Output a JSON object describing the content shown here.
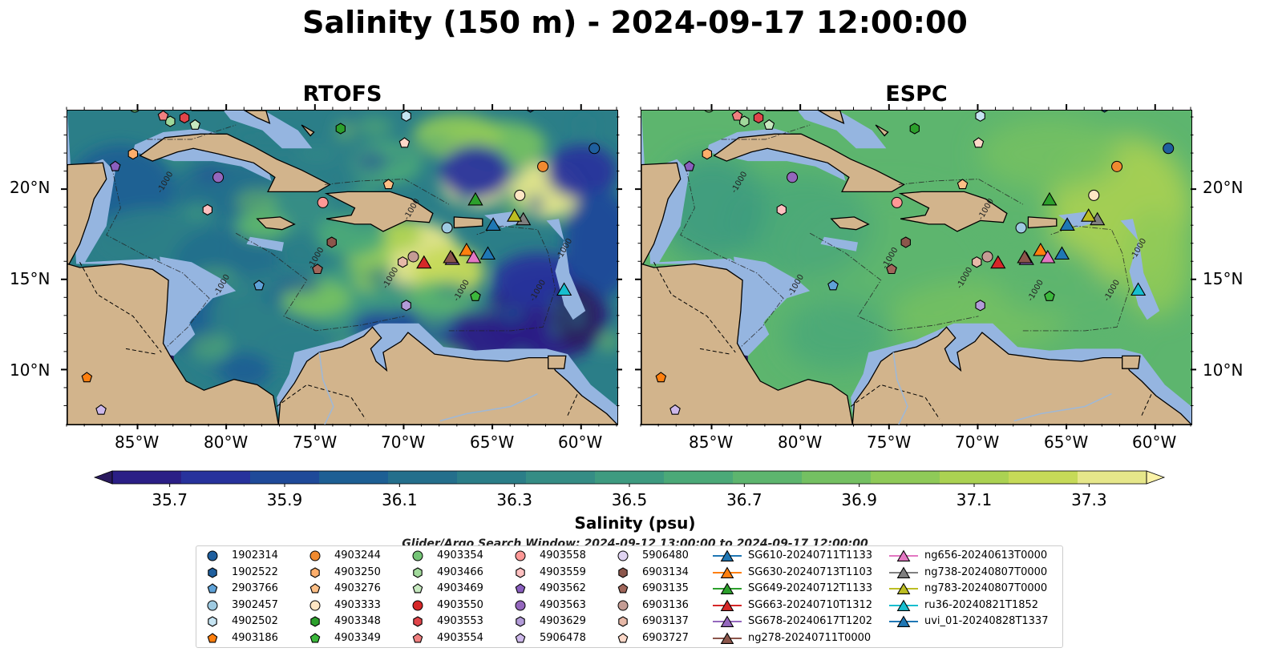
{
  "figure": {
    "title": "Salinity (150 m) - 2024-09-17 12:00:00",
    "search_window_text": "Glider/Argo Search Window: 2024-09-12 13:00:00 to 2024-09-17 12:00:00"
  },
  "colors": {
    "land": "#d2b48c",
    "shelf": "#95b5e0",
    "colormap": [
      "#2a1a5e",
      "#2b1f86",
      "#27329c",
      "#1f4a99",
      "#1d5f94",
      "#246f8c",
      "#2b7e88",
      "#358d85",
      "#3e9b80",
      "#4ba978",
      "#5db56e",
      "#74c062",
      "#8fca58",
      "#abd252",
      "#c6da58",
      "#e6e78a",
      "#fbf3a8"
    ]
  },
  "chart_data": [
    {
      "type": "heatmap",
      "title": "RTOFS",
      "xlabel": "",
      "ylabel": "",
      "x_ticks": [
        "85°W",
        "80°W",
        "75°W",
        "70°W",
        "65°W",
        "60°W"
      ],
      "x_tick_values": [
        -85,
        -80,
        -75,
        -70,
        -65,
        -60
      ],
      "y_ticks": [
        "20°N",
        "15°N",
        "10°N"
      ],
      "y_tick_values": [
        20,
        15,
        10
      ],
      "xlim": [
        -89,
        -58
      ],
      "ylim": [
        7,
        24.4
      ],
      "contour_labels": [
        "-1000"
      ],
      "field_character": "strong eddies, high salinity core near 67-70°W 15-18°N"
    },
    {
      "type": "heatmap",
      "title": "ESPC",
      "xlabel": "",
      "ylabel": "",
      "x_ticks": [
        "85°W",
        "80°W",
        "75°W",
        "70°W",
        "65°W",
        "60°W"
      ],
      "x_tick_values": [
        -85,
        -80,
        -75,
        -70,
        -65,
        -60
      ],
      "y_ticks": [
        "20°N",
        "15°N",
        "10°N"
      ],
      "y_tick_values": [
        20,
        15,
        10
      ],
      "xlim": [
        -89,
        -58
      ],
      "ylim": [
        7,
        24.4
      ],
      "contour_labels": [
        "-1000"
      ],
      "field_character": "smooth field, mostly ~36.8-37.0 psu"
    },
    {
      "type": "colorbar",
      "label": "Salinity (psu)",
      "range": [
        35.6,
        37.4
      ],
      "tick_values": [
        35.7,
        35.9,
        36.1,
        36.3,
        36.5,
        36.7,
        36.9,
        37.1,
        37.3
      ],
      "tick_labels": [
        "35.7",
        "35.9",
        "36.1",
        "36.3",
        "36.5",
        "36.7",
        "36.9",
        "37.1",
        "37.3"
      ],
      "extend": "both"
    }
  ],
  "points": [
    {
      "id": "1902314",
      "lon": -59.3,
      "lat": 22.3,
      "marker": "circle",
      "color": "#1f5f9e"
    },
    {
      "id": "1902522",
      "lon": -62.9,
      "lat": 24.6,
      "marker": "hexagon",
      "color": "#1f5f9e"
    },
    {
      "id": "2903766",
      "lon": -78.2,
      "lat": 14.7,
      "marker": "pentagon",
      "color": "#5fa2d8"
    },
    {
      "id": "3902457",
      "lon": -67.6,
      "lat": 17.9,
      "marker": "circle",
      "color": "#9ecae1"
    },
    {
      "id": "4902502",
      "lon": -69.9,
      "lat": 24.1,
      "marker": "hexagon",
      "color": "#c6e4f2"
    },
    {
      "id": "4903186",
      "lon": -87.9,
      "lat": 9.6,
      "marker": "pentagon",
      "color": "#ff7f0e"
    },
    {
      "id": "4903244",
      "lon": -62.2,
      "lat": 21.3,
      "marker": "circle",
      "color": "#f08a30"
    },
    {
      "id": "4903250",
      "lon": -85.3,
      "lat": 22.0,
      "marker": "hexagon",
      "color": "#fdae6b"
    },
    {
      "id": "4903276",
      "lon": -70.9,
      "lat": 20.3,
      "marker": "pentagon",
      "color": "#fdbf86"
    },
    {
      "id": "4903333",
      "lon": -63.5,
      "lat": 19.7,
      "marker": "circle",
      "color": "#fee6c4"
    },
    {
      "id": "4903348",
      "lon": -73.6,
      "lat": 23.4,
      "marker": "hexagon",
      "color": "#2ca02c"
    },
    {
      "id": "4903349",
      "lon": -66.0,
      "lat": 14.1,
      "marker": "pentagon",
      "color": "#3cb83c"
    },
    {
      "id": "4903354",
      "lon": -85.2,
      "lat": 24.6,
      "marker": "circle",
      "color": "#74c476"
    },
    {
      "id": "4903466",
      "lon": -83.2,
      "lat": 23.8,
      "marker": "hexagon",
      "color": "#a1d99b"
    },
    {
      "id": "4903469",
      "lon": -81.8,
      "lat": 23.6,
      "marker": "pentagon",
      "color": "#c7e9c0"
    },
    {
      "id": "4903550",
      "lon": -82.9,
      "lat": 24.9,
      "marker": "circle",
      "color": "#d62728"
    },
    {
      "id": "4903553",
      "lon": -82.4,
      "lat": 24.0,
      "marker": "hexagon",
      "color": "#e0454a"
    },
    {
      "id": "4903554",
      "lon": -83.6,
      "lat": 24.1,
      "marker": "pentagon",
      "color": "#f08080"
    },
    {
      "id": "4903558",
      "lon": -74.6,
      "lat": 19.3,
      "marker": "circle",
      "color": "#ff9896"
    },
    {
      "id": "4903559",
      "lon": -81.1,
      "lat": 18.9,
      "marker": "hexagon",
      "color": "#ffc0c0"
    },
    {
      "id": "4903562",
      "lon": -86.3,
      "lat": 21.3,
      "marker": "pentagon",
      "color": "#8a5fbf"
    },
    {
      "id": "4903563",
      "lon": -80.5,
      "lat": 20.7,
      "marker": "circle",
      "color": "#9467bd"
    },
    {
      "id": "4903629",
      "lon": -69.9,
      "lat": 13.6,
      "marker": "hexagon",
      "color": "#b29bd8"
    },
    {
      "id": "5906478",
      "lon": -87.1,
      "lat": 7.8,
      "marker": "pentagon",
      "color": "#cdb8ea"
    },
    {
      "id": "5906480",
      "lon": -60.9,
      "lat": 25.0,
      "marker": "circle",
      "color": "#e0d4f2"
    },
    {
      "id": "6903134",
      "lon": -74.1,
      "lat": 17.1,
      "marker": "hexagon",
      "color": "#8c564b"
    },
    {
      "id": "6903135",
      "lon": -74.9,
      "lat": 15.6,
      "marker": "pentagon",
      "color": "#a0665a"
    },
    {
      "id": "6903136",
      "lon": -69.5,
      "lat": 16.3,
      "marker": "circle",
      "color": "#c49c94"
    },
    {
      "id": "6903137",
      "lon": -70.1,
      "lat": 16.0,
      "marker": "hexagon",
      "color": "#e7b9a8"
    },
    {
      "id": "6903727",
      "lon": -70.0,
      "lat": 22.6,
      "marker": "pentagon",
      "color": "#fdd8c8"
    },
    {
      "id": "SG610-20240711T1133",
      "lon": -65.0,
      "lat": 18.1,
      "marker": "triangle",
      "color": "#1f77b4"
    },
    {
      "id": "SG630-20240713T1103",
      "lon": -66.5,
      "lat": 16.7,
      "marker": "triangle",
      "color": "#ff7f0e"
    },
    {
      "id": "SG649-20240712T1133",
      "lon": -66.0,
      "lat": 19.5,
      "marker": "triangle",
      "color": "#2ca02c"
    },
    {
      "id": "SG663-20240710T1312",
      "lon": -68.9,
      "lat": 16.0,
      "marker": "triangle",
      "color": "#d62728"
    },
    {
      "id": "SG678-20240617T1202",
      "lon": -67.3,
      "lat": 16.2,
      "marker": "triangle",
      "color": "#9467bd"
    },
    {
      "id": "ng278-20240711T0000",
      "lon": -67.4,
      "lat": 16.3,
      "marker": "triangle",
      "color": "#8c564b"
    },
    {
      "id": "ng656-20240613T0000",
      "lon": -66.1,
      "lat": 16.3,
      "marker": "triangle",
      "color": "#e377c2"
    },
    {
      "id": "ng738-20240807T0000",
      "lon": -63.3,
      "lat": 18.4,
      "marker": "triangle",
      "color": "#7f7f7f"
    },
    {
      "id": "ng783-20240807T0000",
      "lon": -63.8,
      "lat": 18.6,
      "marker": "triangle",
      "color": "#bcbd22"
    },
    {
      "id": "ru36-20240821T1852",
      "lon": -61.0,
      "lat": 14.5,
      "marker": "triangle",
      "color": "#17becf"
    },
    {
      "id": "uvi_01-20240828T1337",
      "lon": -65.3,
      "lat": 16.5,
      "marker": "triangle",
      "color": "#1f77b4"
    }
  ]
}
